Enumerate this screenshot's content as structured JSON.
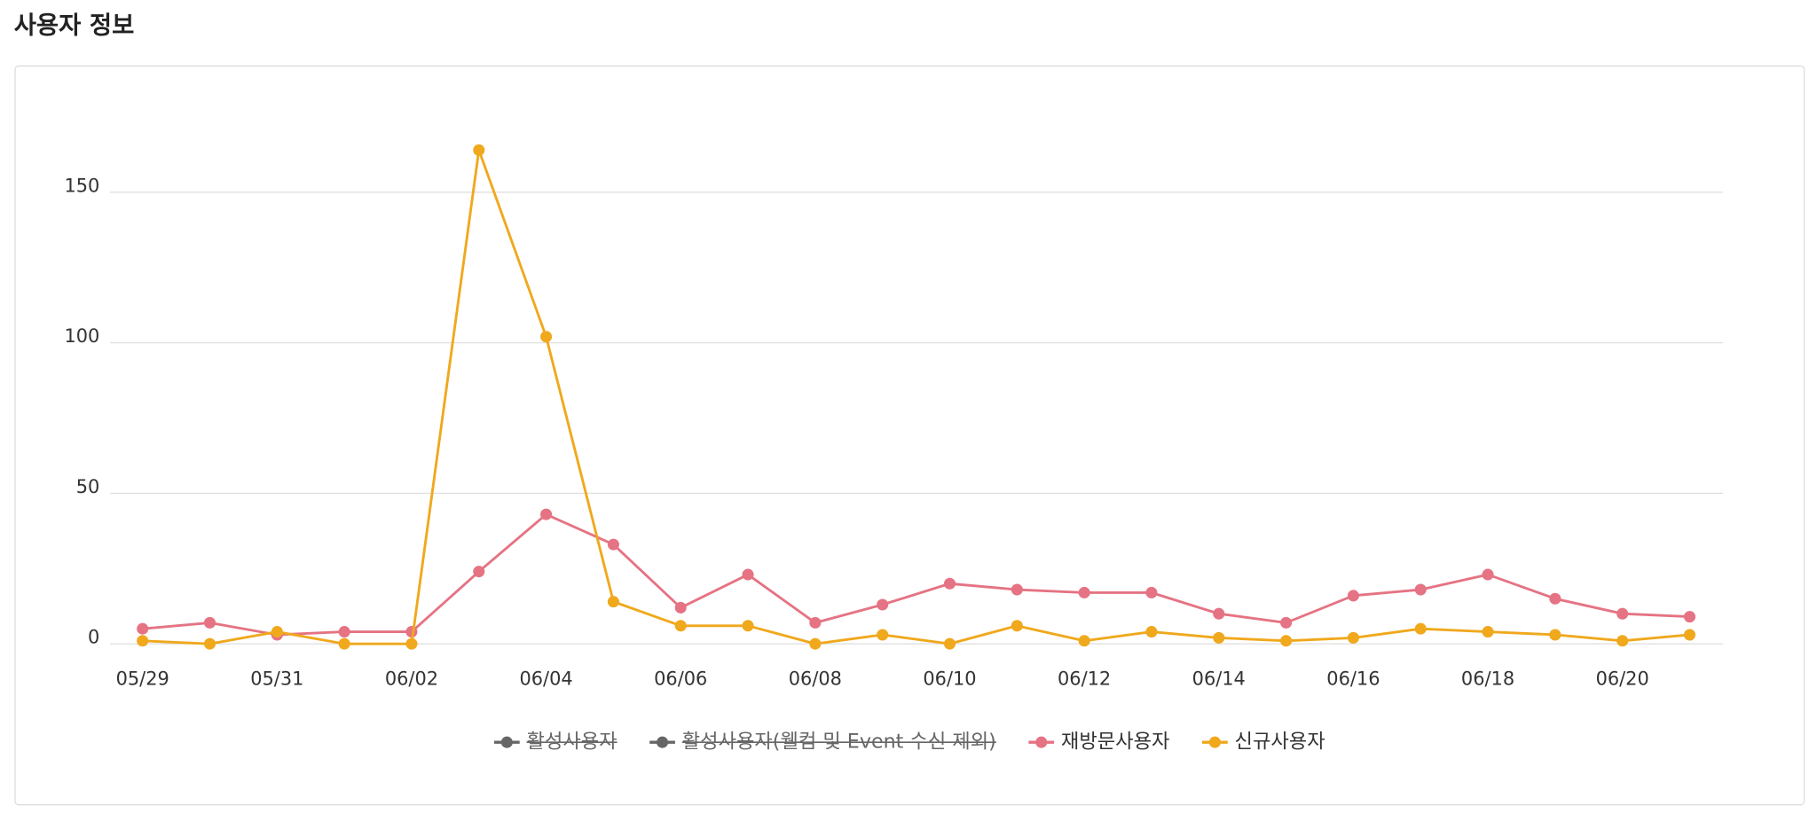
{
  "page_title": "사용자 정보",
  "chart_data": {
    "type": "line",
    "categories": [
      "05/29",
      null,
      "05/31",
      null,
      "06/02",
      null,
      "06/04",
      null,
      "06/06",
      null,
      "06/08",
      null,
      "06/10",
      null,
      "06/12",
      null,
      "06/14",
      null,
      "06/16",
      null,
      "06/18",
      null,
      "06/20",
      null
    ],
    "series": [
      {
        "name": "활성사용자",
        "color": "#666666",
        "hidden": true
      },
      {
        "name": "활성사용자(웰컴 및 Event 수신 제외)",
        "color": "#666666",
        "hidden": true
      },
      {
        "name": "재방문사용자",
        "color": "#e57383",
        "values": [
          5,
          7,
          3,
          4,
          4,
          24,
          43,
          33,
          12,
          23,
          7,
          13,
          20,
          18,
          17,
          17,
          10,
          7,
          16,
          18,
          23,
          15,
          10,
          9
        ]
      },
      {
        "name": "신규사용자",
        "color": "#f0a81c",
        "values": [
          1,
          0,
          4,
          0,
          0,
          164,
          102,
          14,
          6,
          6,
          0,
          3,
          0,
          6,
          1,
          4,
          2,
          1,
          2,
          5,
          4,
          3,
          1,
          3
        ]
      }
    ],
    "ylim": [
      0,
      175
    ],
    "yticks": [
      0,
      50,
      100,
      150
    ],
    "grid": true,
    "legend": "bottom"
  }
}
